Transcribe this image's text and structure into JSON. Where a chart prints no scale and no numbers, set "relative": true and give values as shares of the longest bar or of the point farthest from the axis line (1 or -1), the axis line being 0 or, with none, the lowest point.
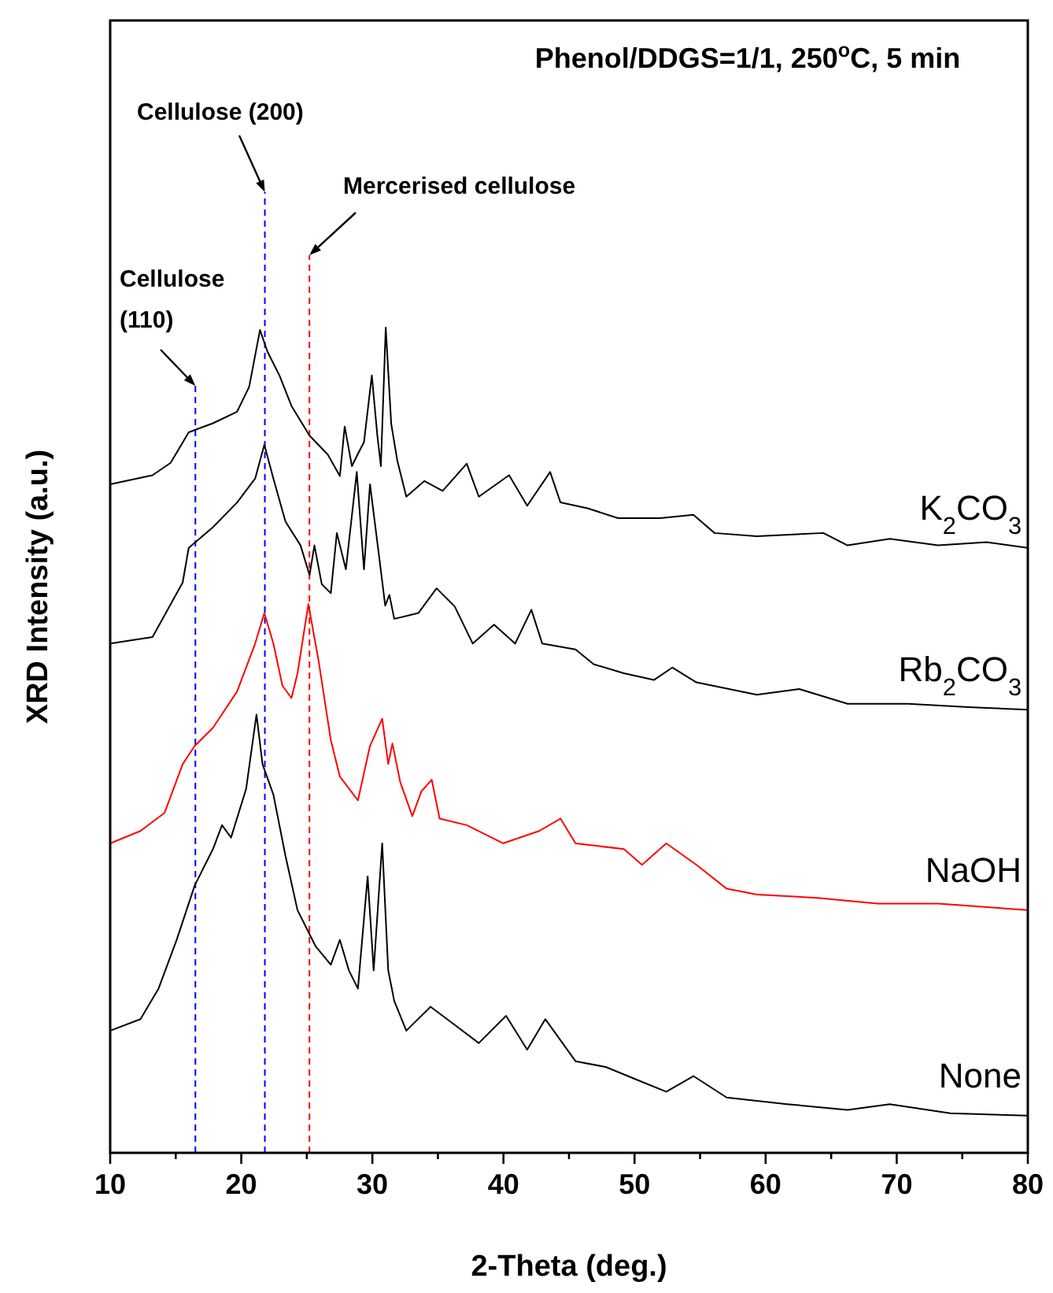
{
  "chart_data": {
    "type": "line",
    "title": "Phenol/DDGS=1/1, 250$^{o}$C, 5 min",
    "xlabel": "2-Theta (deg.)",
    "ylabel": "XRD Intensity (a.u.)",
    "relative": true,
    "grid": false,
    "marker": "none",
    "line_style": "solid",
    "xlim": [
      10,
      80
    ],
    "xticks": [
      10,
      {
        "value": 15,
        "label": null
      },
      20,
      {
        "value": 25,
        "label": null
      },
      30,
      {
        "value": 35,
        "label": null
      },
      40,
      {
        "value": 45,
        "label": null
      },
      50,
      {
        "value": 55,
        "label": null
      },
      60,
      {
        "value": 65,
        "label": null
      },
      70,
      {
        "value": 75,
        "label": null
      },
      80
    ],
    "series": [
      {
        "name": "K$_{2}$CO$_{3}$",
        "color": "#000000",
        "x": [
          10,
          13.23,
          14.61,
          15.99,
          17.84,
          19.68,
          20.6,
          21.43,
          21.99,
          22.91,
          23.83,
          25.21,
          26.6,
          27.52,
          27.89,
          28.44,
          28.9,
          29.36,
          29.96,
          30.38,
          30.65,
          31.02,
          31.44,
          31.9,
          32.59,
          33.97,
          35.36,
          37.2,
          38.12,
          40.43,
          41.81,
          43.56,
          44.35,
          46.42,
          48.73,
          51.96,
          54.49,
          56.1,
          59.33,
          64.4,
          66.25,
          69.47,
          73.16,
          76.85,
          79.99
        ],
        "values": [
          0.81,
          0.821,
          0.836,
          0.873,
          0.884,
          0.898,
          0.928,
          0.997,
          0.971,
          0.942,
          0.905,
          0.869,
          0.846,
          0.82,
          0.88,
          0.832,
          0.847,
          0.861,
          0.942,
          0.869,
          0.832,
          1,
          0.883,
          0.839,
          0.795,
          0.814,
          0.802,
          0.835,
          0.795,
          0.821,
          0.784,
          0.825,
          0.788,
          0.781,
          0.769,
          0.769,
          0.773,
          0.751,
          0.747,
          0.751,
          0.736,
          0.744,
          0.736,
          0.74,
          0.733
        ]
      },
      {
        "name": "Rb$_{2}$CO$_{3}$",
        "color": "#000000",
        "x": [
          10,
          13.23,
          15.53,
          15.99,
          17.84,
          19.68,
          21.06,
          21.76,
          22.45,
          23.37,
          24.52,
          25.21,
          25.58,
          26.14,
          26.83,
          27.29,
          27.98,
          28.81,
          29.36,
          29.82,
          30.52,
          30.98,
          31.3,
          31.67,
          33.51,
          34.9,
          36.28,
          37.66,
          39.28,
          40.89,
          42.13,
          42.96,
          45.5,
          46.88,
          49.19,
          51.49,
          52.88,
          54.72,
          59.33,
          62.56,
          66.25,
          70.86,
          75.47,
          79.99
        ],
        "values": [
          0.617,
          0.625,
          0.691,
          0.733,
          0.758,
          0.788,
          0.817,
          0.858,
          0.817,
          0.765,
          0.736,
          0.7,
          0.736,
          0.689,
          0.678,
          0.751,
          0.707,
          0.825,
          0.707,
          0.81,
          0.722,
          0.663,
          0.676,
          0.647,
          0.654,
          0.684,
          0.662,
          0.617,
          0.64,
          0.617,
          0.658,
          0.617,
          0.61,
          0.592,
          0.581,
          0.573,
          0.588,
          0.57,
          0.555,
          0.562,
          0.544,
          0.544,
          0.54,
          0.537
        ]
      },
      {
        "name": "NaOH",
        "color": "#ff0000",
        "x": [
          10,
          12.31,
          14.15,
          15.53,
          16.45,
          17.84,
          19.68,
          21.06,
          21.76,
          22.45,
          23.14,
          23.83,
          24.29,
          25.12,
          25.91,
          26.83,
          27.52,
          28.9,
          29.82,
          30.75,
          31.21,
          31.53,
          32.13,
          33.05,
          33.74,
          34.53,
          35.13,
          37.2,
          39.97,
          42.73,
          44.35,
          45.5,
          49.19,
          50.57,
          52.42,
          54.72,
          57.03,
          59.33,
          63.94,
          68.55,
          73.16,
          79.99
        ],
        "values": [
          0.375,
          0.39,
          0.412,
          0.471,
          0.493,
          0.515,
          0.559,
          0.617,
          0.654,
          0.617,
          0.566,
          0.551,
          0.581,
          0.665,
          0.595,
          0.5,
          0.456,
          0.427,
          0.493,
          0.526,
          0.471,
          0.496,
          0.449,
          0.408,
          0.438,
          0.452,
          0.405,
          0.397,
          0.375,
          0.39,
          0.405,
          0.375,
          0.368,
          0.349,
          0.375,
          0.349,
          0.32,
          0.313,
          0.309,
          0.302,
          0.302,
          0.294
        ]
      },
      {
        "name": "None",
        "color": "#000000",
        "x": [
          10,
          12.31,
          13.69,
          15.07,
          16.45,
          17.84,
          18.53,
          19.22,
          20.37,
          21.16,
          21.62,
          22.45,
          23.37,
          24.29,
          25.68,
          26.83,
          27.52,
          28.21,
          28.9,
          29.64,
          30.1,
          30.75,
          31.21,
          31.67,
          32.59,
          34.44,
          36.28,
          38.12,
          40.2,
          41.81,
          43.19,
          45.5,
          47.81,
          50.11,
          52.42,
          54.49,
          57.03,
          61.64,
          66.25,
          69.47,
          74.09,
          79.99
        ],
        "values": [
          0.148,
          0.162,
          0.199,
          0.258,
          0.324,
          0.368,
          0.397,
          0.382,
          0.441,
          0.531,
          0.471,
          0.434,
          0.36,
          0.294,
          0.25,
          0.228,
          0.258,
          0.221,
          0.199,
          0.335,
          0.221,
          0.375,
          0.221,
          0.184,
          0.148,
          0.177,
          0.155,
          0.133,
          0.166,
          0.125,
          0.162,
          0.111,
          0.104,
          0.089,
          0.074,
          0.093,
          0.067,
          0.059,
          0.052,
          0.059,
          0.048,
          0.045
        ]
      }
    ],
    "ref_lines": [
      {
        "axis": "x",
        "value": 16.5,
        "label": "Cellulose (110)",
        "color": "#0000ff",
        "line_style": "dashed"
      },
      {
        "axis": "x",
        "value": 21.8,
        "label": "Cellulose (200)",
        "color": "#0000ff",
        "line_style": "dashed"
      },
      {
        "axis": "x",
        "value": 25.2,
        "label": "Mercerised cellulose",
        "color": "#ff0000",
        "line_style": "dashed"
      }
    ]
  }
}
